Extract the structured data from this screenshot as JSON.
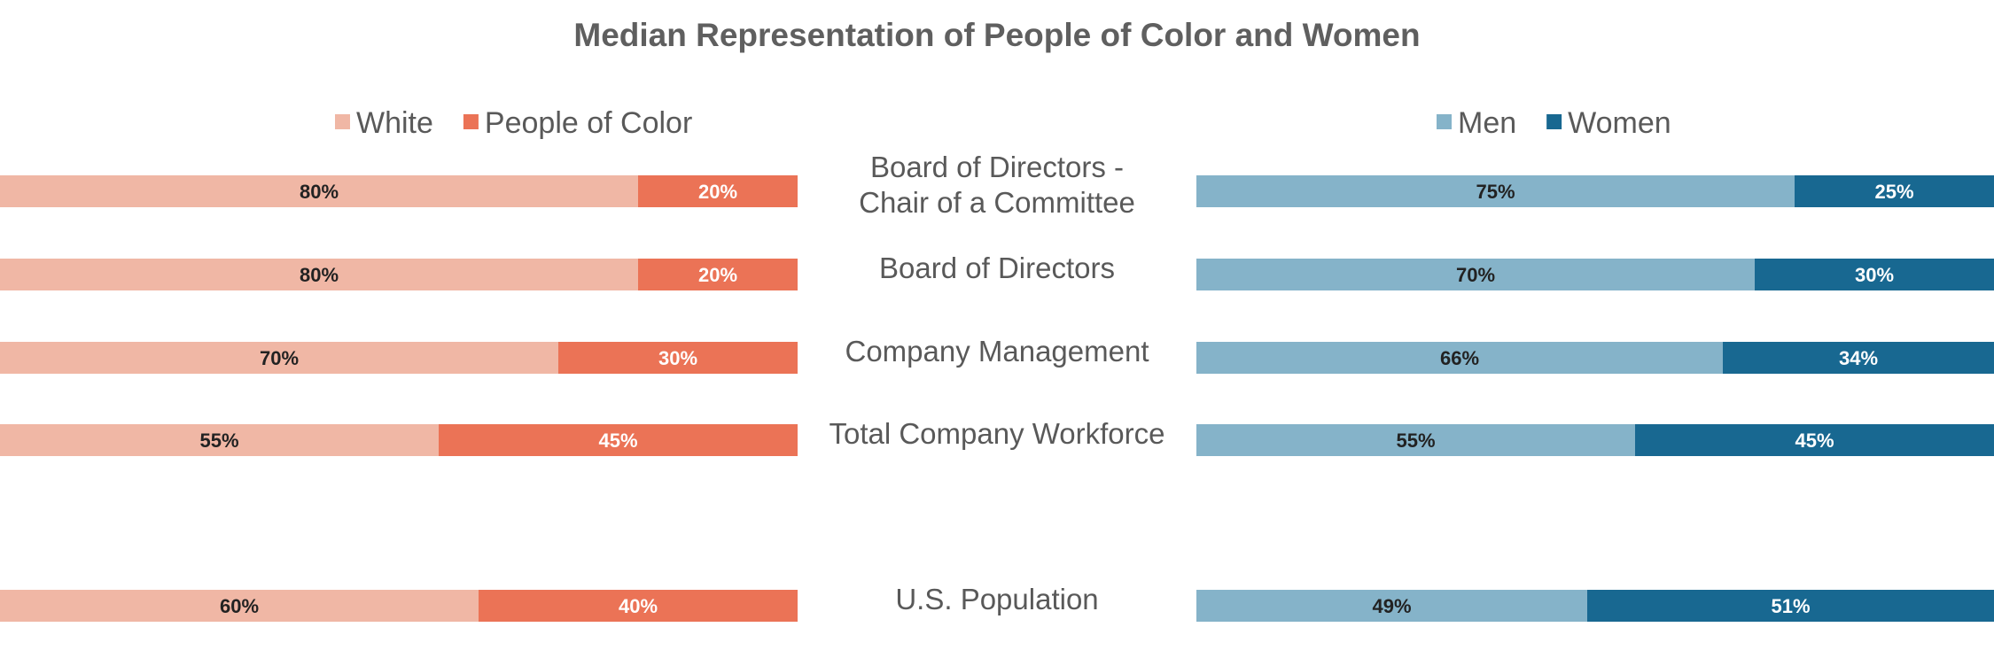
{
  "chart_data": {
    "type": "bar",
    "title": "Median Representation of People of Color and Women",
    "categories": [
      [
        "Board of Directors -",
        "Chair of a Committee"
      ],
      [
        "Board of Directors"
      ],
      [
        "Company Management"
      ],
      [
        "Total Company Workforce"
      ],
      [
        "U.S. Population"
      ]
    ],
    "panels": [
      {
        "name": "race",
        "legend": [
          "White",
          "People of Color"
        ],
        "colors": [
          "#f0b7a5",
          "#eb7356"
        ],
        "label_colors": [
          "#222222",
          "#ffffff"
        ],
        "series": [
          {
            "name": "White",
            "values": [
              80,
              80,
              70,
              55,
              60
            ]
          },
          {
            "name": "People of Color",
            "values": [
              20,
              20,
              30,
              45,
              40
            ]
          }
        ]
      },
      {
        "name": "gender",
        "legend": [
          "Men",
          "Women"
        ],
        "colors": [
          "#85b3c9",
          "#186891"
        ],
        "label_colors": [
          "#222222",
          "#ffffff"
        ],
        "series": [
          {
            "name": "Men",
            "values": [
              75,
              70,
              66,
              55,
              49
            ]
          },
          {
            "name": "Women",
            "values": [
              25,
              30,
              34,
              45,
              51
            ]
          }
        ]
      }
    ],
    "value_suffix": "%",
    "xlim": [
      0,
      100
    ],
    "grid": false,
    "legend_position": "top"
  }
}
